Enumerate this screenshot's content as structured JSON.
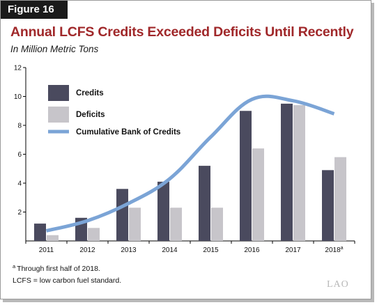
{
  "figure_label": "Figure 16",
  "title": "Annual LCFS Credits Exceeded Deficits Until Recently",
  "subtitle": "In Million Metric Tons",
  "notes": {
    "footnote_marker": "a",
    "footnote_text": "Through first half of 2018.",
    "abbreviation": "LCFS = low carbon fuel standard."
  },
  "logo_text": "LAO",
  "colors": {
    "credits": "#4a4a5e",
    "deficits": "#c7c5ca",
    "cumulative": "#7ba4d6",
    "title": "#a0282a"
  },
  "chart_data": {
    "type": "bar",
    "categories": [
      "2011",
      "2012",
      "2013",
      "2014",
      "2015",
      "2016",
      "2017",
      "2018"
    ],
    "category_superscripts": [
      "",
      "",
      "",
      "",
      "",
      "",
      "",
      "a"
    ],
    "series": [
      {
        "name": "Credits",
        "type": "bar",
        "values": [
          1.2,
          1.6,
          3.6,
          4.1,
          5.2,
          9.0,
          9.5,
          4.9
        ]
      },
      {
        "name": "Deficits",
        "type": "bar",
        "values": [
          0.4,
          0.9,
          2.3,
          2.3,
          2.3,
          6.4,
          9.4,
          5.8
        ]
      },
      {
        "name": "Cumulative Bank of Credits",
        "type": "line",
        "values": [
          0.7,
          1.4,
          2.6,
          4.3,
          7.2,
          9.8,
          9.7,
          8.8
        ]
      }
    ],
    "yticks": [
      2,
      4,
      6,
      8,
      10,
      12
    ],
    "ylim": [
      0,
      12
    ],
    "legend_placement": "top-left",
    "grid": false
  }
}
